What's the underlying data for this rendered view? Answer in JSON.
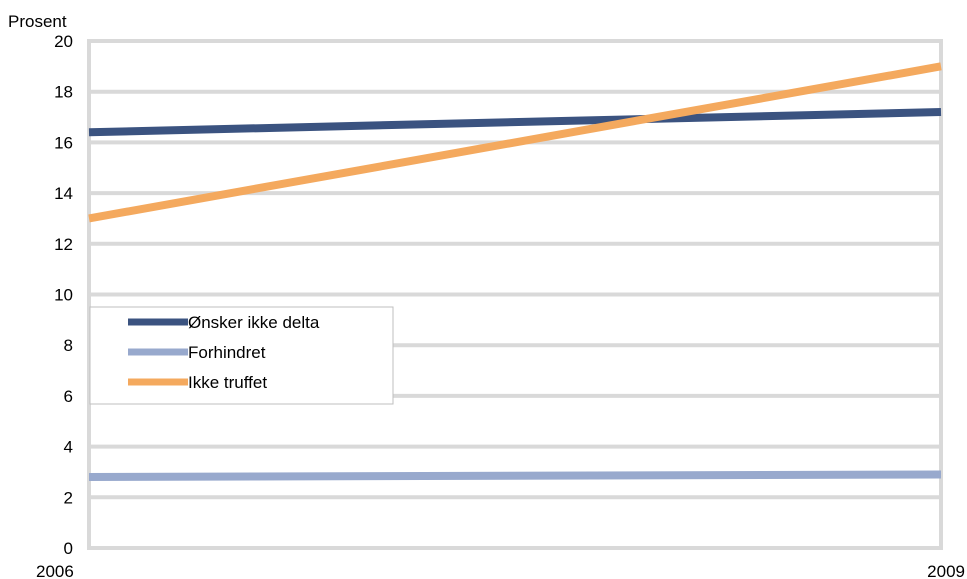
{
  "chart_data": {
    "type": "line",
    "ylabel": "Prosent",
    "x": [
      2006,
      2009
    ],
    "x_tick_labels": [
      "2006",
      "2009"
    ],
    "ylim": [
      0,
      20
    ],
    "y_ticks": [
      0,
      2,
      4,
      6,
      8,
      10,
      12,
      14,
      16,
      18,
      20
    ],
    "y_tick_labels": [
      "0",
      "2",
      "4",
      "6",
      "8",
      "10",
      "12",
      "14",
      "16",
      "18",
      "20"
    ],
    "grid": true,
    "legend_position": "middle-left",
    "series": [
      {
        "name": "Ønsker ikke delta",
        "color": "#3b5380",
        "values": [
          16.4,
          17.2
        ]
      },
      {
        "name": "Forhindret",
        "color": "#98a9cd",
        "values": [
          2.8,
          2.9
        ]
      },
      {
        "name": "Ikke truffet",
        "color": "#f4a95e",
        "values": [
          13.0,
          19.0
        ]
      }
    ]
  }
}
